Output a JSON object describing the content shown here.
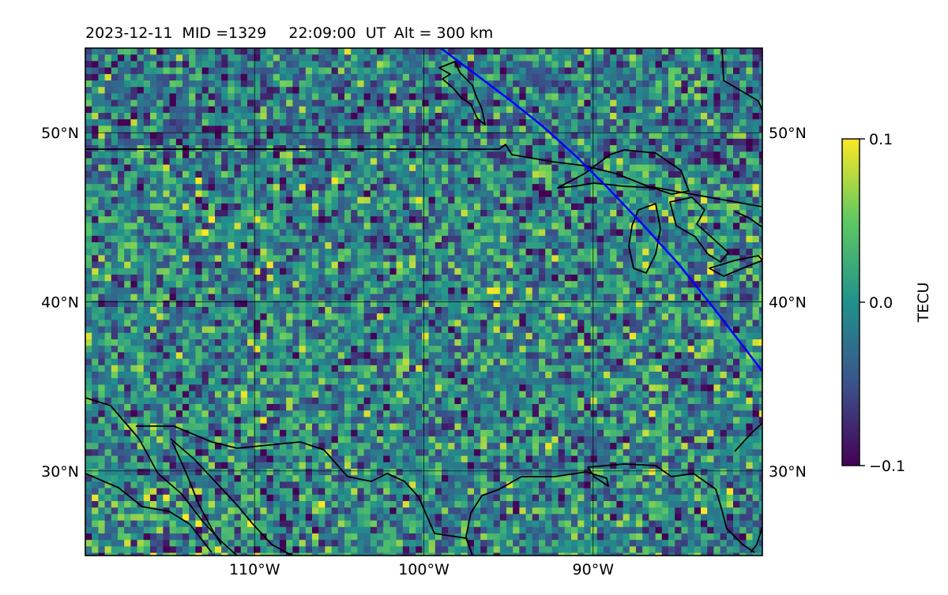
{
  "title": {
    "date": "2023-12-11",
    "mid": "MID =1329",
    "time": "22:09:00",
    "time_unit": "UT",
    "altitude": "Alt = 300 km"
  },
  "map": {
    "lon_range": [
      -120,
      -80
    ],
    "lat_range": [
      25,
      55
    ],
    "lon_ticks": [
      {
        "value": -110,
        "label": "110°W"
      },
      {
        "value": -100,
        "label": "100°W"
      },
      {
        "value": -90,
        "label": "90°W"
      }
    ],
    "lat_ticks": [
      {
        "value": 50,
        "label": "50°N"
      },
      {
        "value": 40,
        "label": "40°N"
      },
      {
        "value": 30,
        "label": "30°N"
      }
    ],
    "gridlines": true,
    "track_color": "#0000ff",
    "track": [
      [
        -99,
        55
      ],
      [
        -97,
        53.5
      ],
      [
        -95,
        52
      ],
      [
        -93,
        50.4
      ],
      [
        -91,
        48.6
      ],
      [
        -89,
        46.6
      ],
      [
        -87,
        44.5
      ],
      [
        -85,
        42.3
      ],
      [
        -83,
        39.8
      ],
      [
        -81,
        37.2
      ],
      [
        -80,
        35.9
      ]
    ]
  },
  "colorbar": {
    "label": "TECU",
    "range": [
      -0.1,
      0.1
    ],
    "ticks": [
      {
        "value": 0.1,
        "label": "0.1"
      },
      {
        "value": 0.0,
        "label": "0.0"
      },
      {
        "value": -0.1,
        "label": "−0.1"
      }
    ],
    "colormap": "viridis",
    "stops": [
      "#440154",
      "#3b528b",
      "#21918c",
      "#5ec962",
      "#fde725"
    ]
  }
}
